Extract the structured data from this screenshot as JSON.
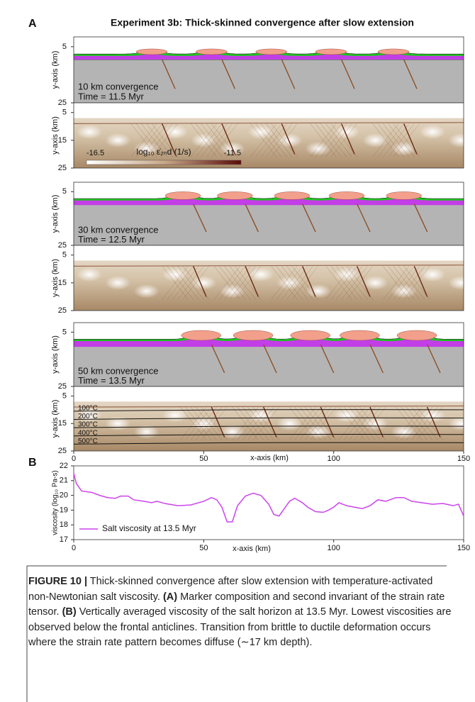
{
  "panel_a": {
    "label": "A",
    "title": "Experiment 3b: Thick-skinned convergence after slow extension",
    "ylabel": "y-axis (km)",
    "xlabel": "x-axis (km)",
    "xlim": [
      0,
      150
    ],
    "xticks": [
      0,
      50,
      100,
      150
    ],
    "ylim": [
      1.5,
      25
    ],
    "composition_yticks": [
      5,
      25
    ],
    "strain_yticks": [
      5,
      15,
      25
    ],
    "rows": [
      {
        "convergence": "10 km convergence",
        "time": "Time = 11.5 Myr"
      },
      {
        "convergence": "30 km convergence",
        "time": "Time = 12.5 Myr"
      },
      {
        "convergence": "50 km convergence",
        "time": "Time = 13.5 Myr"
      }
    ],
    "colorbar": {
      "min": -16.5,
      "max": -11.5,
      "label": "log₁₀ ε̇₂ₙd (1/s)"
    },
    "isotherms": [
      "100°C",
      "200°C",
      "300°C",
      "400°C",
      "500°C"
    ]
  },
  "panel_b_label": "B",
  "chart_data": {
    "type": "line",
    "ylabel": "viscosity (log₁₀ Pa-s)",
    "xlabel": "x-axis (km)",
    "xlim": [
      0,
      150
    ],
    "xticks": [
      0,
      50,
      100,
      150
    ],
    "ylim": [
      17,
      22
    ],
    "yticks": [
      17,
      18,
      19,
      20,
      21,
      22
    ],
    "x": [
      0,
      1,
      3,
      7,
      10,
      13,
      16,
      18,
      21,
      23,
      27,
      30,
      32,
      35,
      40,
      45,
      50,
      53,
      55,
      57,
      59,
      61,
      63,
      66,
      69,
      72,
      75,
      77,
      79,
      81,
      83,
      85,
      88,
      90,
      93,
      96,
      98,
      100,
      102,
      105,
      108,
      111,
      114,
      117,
      120,
      124,
      127,
      130,
      134,
      138,
      142,
      146,
      148,
      150
    ],
    "series": [
      {
        "name": "Salt viscosity at 13.5 Myr",
        "color": "#cc44ee",
        "values": [
          21.5,
          20.8,
          20.3,
          20.2,
          20.0,
          19.85,
          19.8,
          19.95,
          19.95,
          19.7,
          19.6,
          19.5,
          19.6,
          19.45,
          19.3,
          19.35,
          19.6,
          19.85,
          19.7,
          19.2,
          18.2,
          18.2,
          19.3,
          19.95,
          20.15,
          20.0,
          19.4,
          18.7,
          18.6,
          19.1,
          19.6,
          19.8,
          19.5,
          19.2,
          18.9,
          18.85,
          19.0,
          19.2,
          19.5,
          19.3,
          19.2,
          19.1,
          19.3,
          19.7,
          19.6,
          19.85,
          19.85,
          19.6,
          19.5,
          19.4,
          19.45,
          19.3,
          19.4,
          18.6
        ]
      }
    ],
    "legend": "lower left"
  },
  "caption": {
    "label": "FIGURE 10 |",
    "segments": [
      {
        "text": " Thick-skinned convergence after slow extension with temperature-activated non-Newtonian salt viscosity. ",
        "bold": false
      },
      {
        "text": "(A)",
        "bold": true
      },
      {
        "text": " Marker composition and second invariant of the strain rate tensor. ",
        "bold": false
      },
      {
        "text": "(B)",
        "bold": true
      },
      {
        "text": " Vertically averaged viscosity of the salt horizon at 13.5 Myr. Lowest viscosities are observed below the frontal anticlines. Transition from brittle to ductile deformation occurs where the strain rate pattern becomes diffuse (∼17 km depth).",
        "bold": false
      }
    ]
  }
}
